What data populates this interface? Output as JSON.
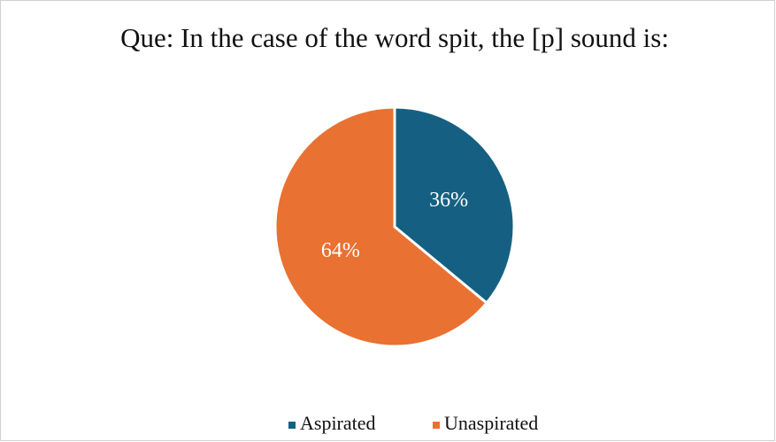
{
  "chart_data": {
    "type": "pie",
    "title": "Que: In the case of the word spit, the [p] sound is:",
    "categories": [
      "Aspirated",
      "Unaspirated"
    ],
    "values": [
      36,
      64
    ],
    "value_labels": [
      "36%",
      "64%"
    ],
    "colors": [
      "#156082",
      "#e97132"
    ],
    "legend": "bottom"
  }
}
